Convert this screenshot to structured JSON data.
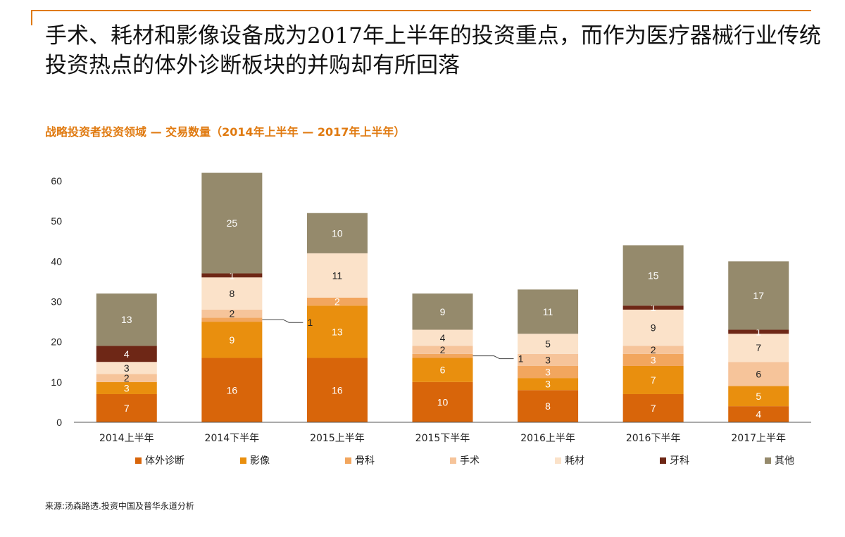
{
  "headline": "手术、耗材和影像设备成为2017年上半年的投资重点，而作为医疗器械行业传统投资热点的体外诊断板块的并购却有所回落",
  "subtitle": "战略投资者投资领域 — 交易数量（2014年上半年 — 2017年上半年）",
  "source": "来源:汤森路透.投资中国及普华永道分析",
  "colors": {
    "accent": "#e07a10",
    "体外诊断": "#d8650a",
    "影像": "#e98f0e",
    "骨科": "#f2a65e",
    "手术": "#f6c49a",
    "耗材": "#fbe2c9",
    "牙科": "#6e2716",
    "其他": "#958a6c"
  },
  "chart_data": {
    "type": "bar",
    "stacked": true,
    "categories": [
      "2014上半年",
      "2014下半年",
      "2015上半年",
      "2015下半年",
      "2016上半年",
      "2016下半年",
      "2017上半年"
    ],
    "series": [
      {
        "name": "体外诊断",
        "values": [
          7,
          16,
          16,
          10,
          8,
          7,
          4
        ]
      },
      {
        "name": "影像",
        "values": [
          3,
          9,
          13,
          6,
          3,
          7,
          5
        ]
      },
      {
        "name": "骨科",
        "values": [
          0,
          1,
          2,
          1,
          3,
          3,
          0
        ]
      },
      {
        "name": "手术",
        "values": [
          2,
          2,
          0,
          2,
          3,
          2,
          6
        ]
      },
      {
        "name": "耗材",
        "values": [
          3,
          8,
          11,
          4,
          5,
          9,
          7
        ]
      },
      {
        "name": "牙科",
        "values": [
          4,
          1,
          0,
          0,
          0,
          1,
          1
        ]
      },
      {
        "name": "其他",
        "values": [
          13,
          25,
          10,
          9,
          11,
          15,
          17
        ]
      }
    ],
    "callouts": [
      {
        "category": "2014下半年",
        "series": "骨科",
        "label": "1"
      },
      {
        "category": "2015下半年",
        "series": "骨科",
        "label": "1"
      }
    ],
    "ylim": [
      0,
      60
    ],
    "yticks": [
      0,
      10,
      20,
      30,
      40,
      50,
      60
    ],
    "grid": false,
    "legend_position": "bottom"
  }
}
